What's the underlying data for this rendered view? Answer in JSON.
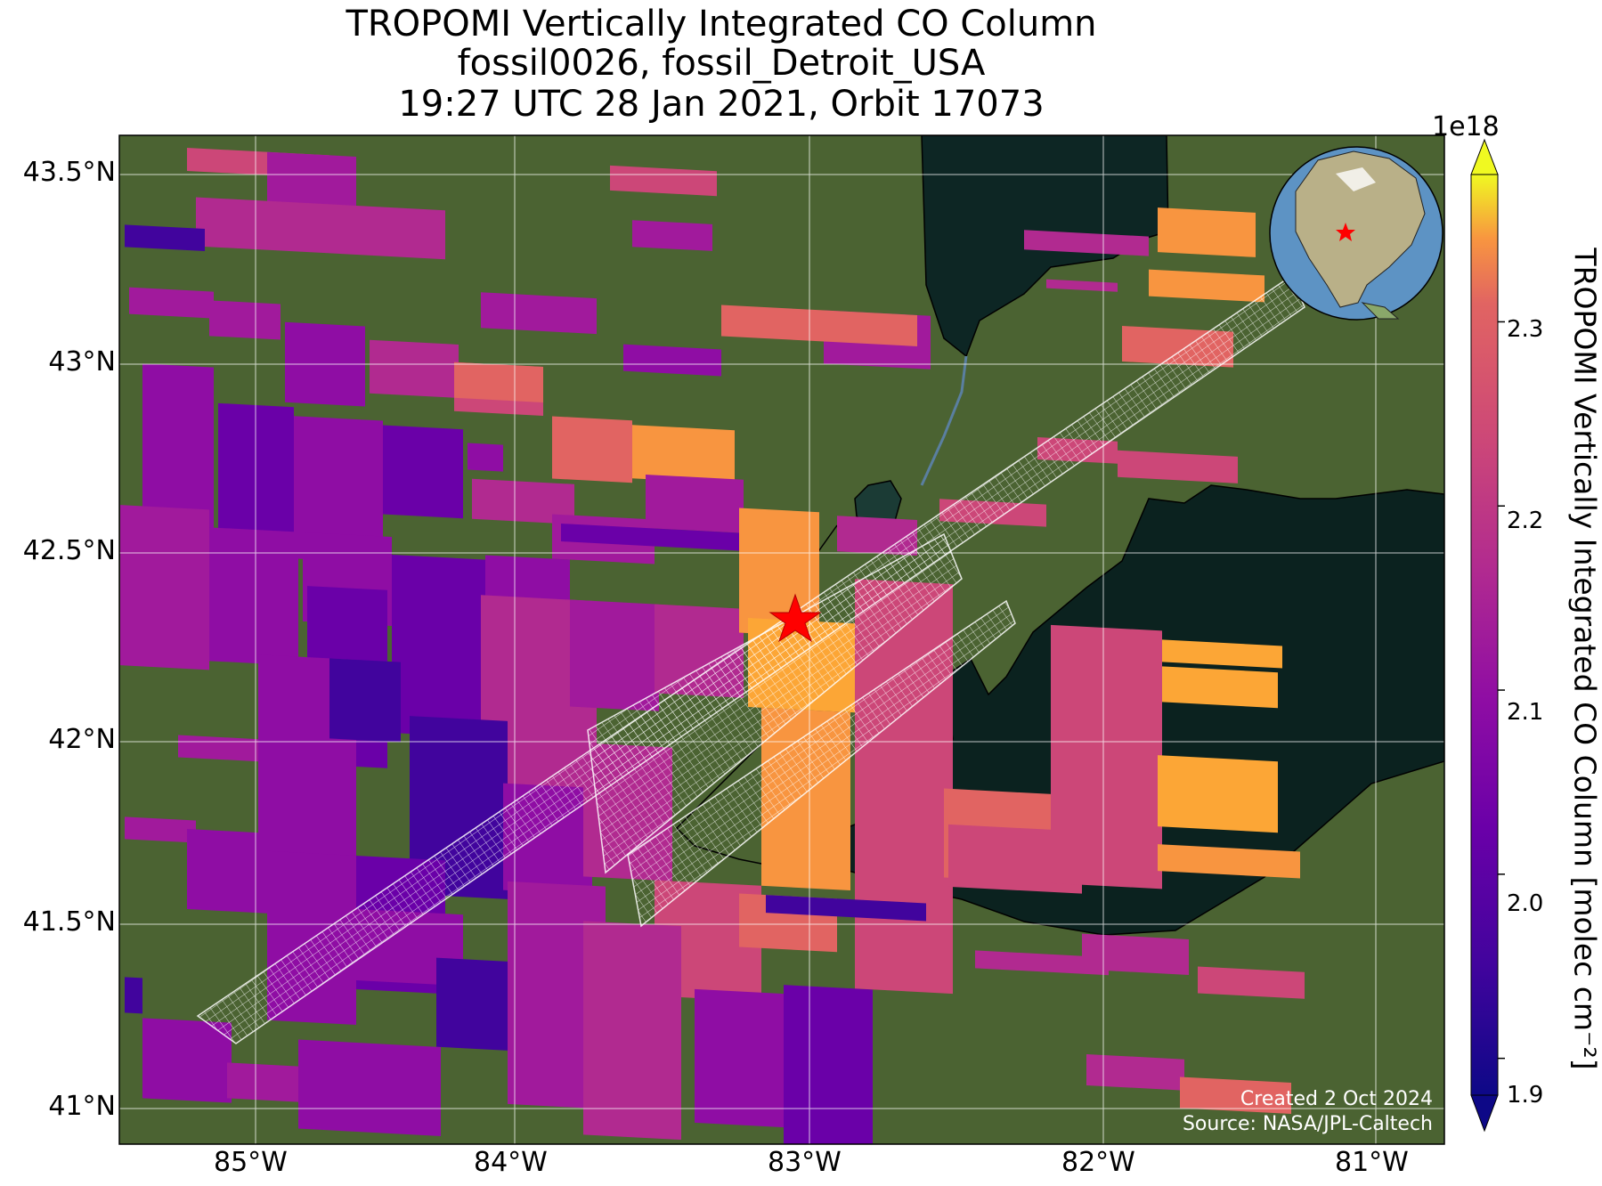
{
  "title": {
    "line1": "TROPOMI Vertically Integrated CO Column",
    "line2": "fossil0026, fossil_Detroit_USA",
    "line3": "19:27 UTC 28 Jan 2021, Orbit 17073"
  },
  "map": {
    "lon_range": [
      -85.55,
      -80.75
    ],
    "lat_range": [
      40.9,
      43.6
    ],
    "grid": true,
    "basemap": "satellite imagery (land, Lake Huron, Lake St. Clair, Lake Erie)",
    "target_marker": {
      "name": "fossil_Detroit_USA",
      "lon": -83.05,
      "lat": 42.33,
      "symbol": "red-star"
    },
    "lat_ticks": [
      "43.5°N",
      "43°N",
      "42.5°N",
      "42°N",
      "41.5°N",
      "41°N"
    ],
    "lon_ticks": [
      "85°W",
      "84°W",
      "83°W",
      "82°W",
      "81°W"
    ]
  },
  "colorbar": {
    "label": "TROPOMI Vertically Integrated CO Column [molec cm⁻²]",
    "exponent": "1e18",
    "colormap": "plasma",
    "range": [
      1.88,
      2.38
    ],
    "ticks": [
      "1.9",
      "2.0",
      "2.1",
      "2.2",
      "2.3"
    ],
    "extend": "both"
  },
  "inset_globe": {
    "marker": "red-star",
    "region": "North America"
  },
  "credits": {
    "created": "Created 2 Oct 2024",
    "source": "Source: NASA/JPL-Caltech"
  },
  "colors": {
    "water": "#0f2a26",
    "land": "#3f5a2c",
    "star": "#ff0000",
    "footprint_outline": "#ffffff"
  }
}
